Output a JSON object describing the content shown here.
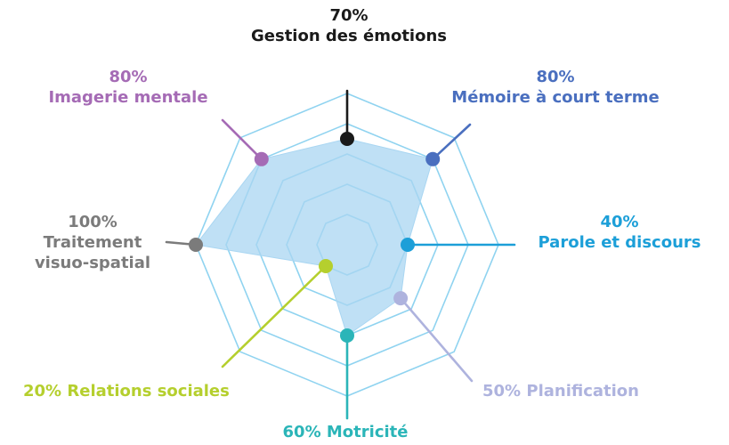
{
  "chart_data": {
    "type": "radar",
    "title": "",
    "scale": [
      0,
      100
    ],
    "grid_levels": [
      20,
      40,
      60,
      80,
      100
    ],
    "colors": {
      "grid": "#8fd3f0",
      "fill": "#a9d6f2",
      "fill_stroke": "#a9d6f2"
    },
    "axes": [
      {
        "name": "Gestion des émotions",
        "value": 70,
        "value_label": "70%",
        "color": "#1a1a1a"
      },
      {
        "name": "Mémoire à court terme",
        "value": 80,
        "value_label": "80%",
        "color": "#4a6fbf"
      },
      {
        "name": "Parole et discours",
        "value": 40,
        "value_label": "40%",
        "color": "#1c9fd8"
      },
      {
        "name": "Planification",
        "value": 50,
        "value_label": "50%",
        "color": "#aeb3de"
      },
      {
        "name": "Motricité",
        "value": 60,
        "value_label": "60%",
        "color": "#2bb5b8"
      },
      {
        "name": "Relations sociales",
        "value": 20,
        "value_label": "20%",
        "color": "#b5cf2e"
      },
      {
        "name": "Traitement visuo-spatial",
        "name_lines": [
          "Traitement",
          "visuo-spatial"
        ],
        "value": 100,
        "value_label": "100%",
        "color": "#7b7b7b"
      },
      {
        "name": "Imagerie mentale",
        "value": 80,
        "value_label": "80%",
        "color": "#a56bb5"
      }
    ]
  }
}
